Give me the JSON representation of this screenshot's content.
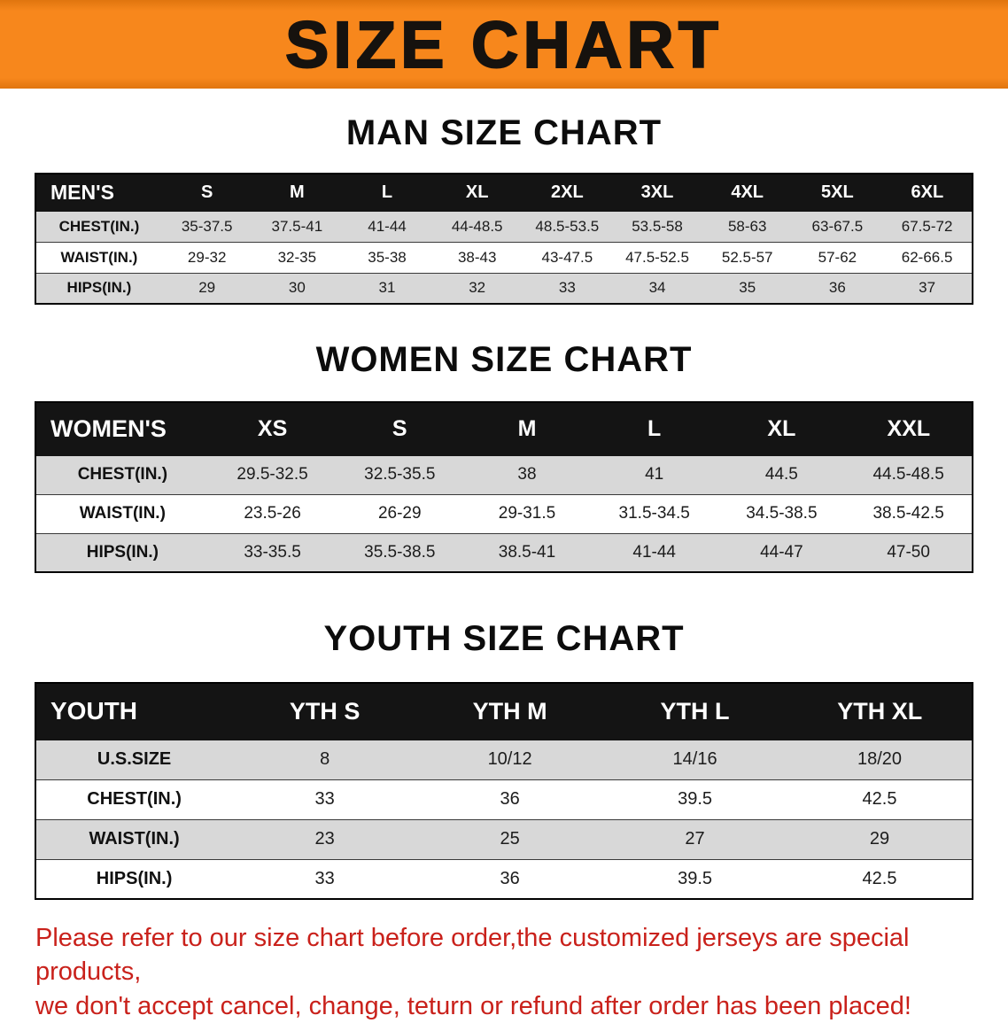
{
  "banner": {
    "title": "SIZE CHART",
    "bg_color": "#f7871c",
    "text_color": "#16120e"
  },
  "sections": [
    {
      "title": "MAN SIZE CHART",
      "table": {
        "header": [
          "MEN'S",
          "S",
          "M",
          "L",
          "XL",
          "2XL",
          "3XL",
          "4XL",
          "5XL",
          "6XL"
        ],
        "rows": [
          [
            "CHEST(IN.)",
            "35-37.5",
            "37.5-41",
            "41-44",
            "44-48.5",
            "48.5-53.5",
            "53.5-58",
            "58-63",
            "63-67.5",
            "67.5-72"
          ],
          [
            "WAIST(IN.)",
            "29-32",
            "32-35",
            "35-38",
            "38-43",
            "43-47.5",
            "47.5-52.5",
            "52.5-57",
            "57-62",
            "62-66.5"
          ],
          [
            "HIPS(IN.)",
            "29",
            "30",
            "31",
            "32",
            "33",
            "34",
            "35",
            "36",
            "37"
          ]
        ]
      }
    },
    {
      "title": "WOMEN SIZE CHART",
      "table": {
        "header": [
          "WOMEN'S",
          "XS",
          "S",
          "M",
          "L",
          "XL",
          "XXL"
        ],
        "rows": [
          [
            "CHEST(IN.)",
            "29.5-32.5",
            "32.5-35.5",
            "38",
            "41",
            "44.5",
            "44.5-48.5"
          ],
          [
            "WAIST(IN.)",
            "23.5-26",
            "26-29",
            "29-31.5",
            "31.5-34.5",
            "34.5-38.5",
            "38.5-42.5"
          ],
          [
            "HIPS(IN.)",
            "33-35.5",
            "35.5-38.5",
            "38.5-41",
            "41-44",
            "44-47",
            "47-50"
          ]
        ]
      }
    },
    {
      "title": "YOUTH SIZE CHART",
      "table": {
        "header": [
          "YOUTH",
          "YTH S",
          "YTH M",
          "YTH L",
          "YTH XL"
        ],
        "rows": [
          [
            "U.S.SIZE",
            "8",
            "10/12",
            "14/16",
            "18/20"
          ],
          [
            "CHEST(IN.)",
            "33",
            "36",
            "39.5",
            "42.5"
          ],
          [
            "WAIST(IN.)",
            "23",
            "25",
            "27",
            "29"
          ],
          [
            "HIPS(IN.)",
            "33",
            "36",
            "39.5",
            "42.5"
          ]
        ]
      }
    }
  ],
  "footer": {
    "line1": "Please refer to our size chart before order,the customized jerseys are special products,",
    "line2": "we don't accept cancel, change, teturn or refund after order has been placed!",
    "text_color": "#c9211b"
  }
}
